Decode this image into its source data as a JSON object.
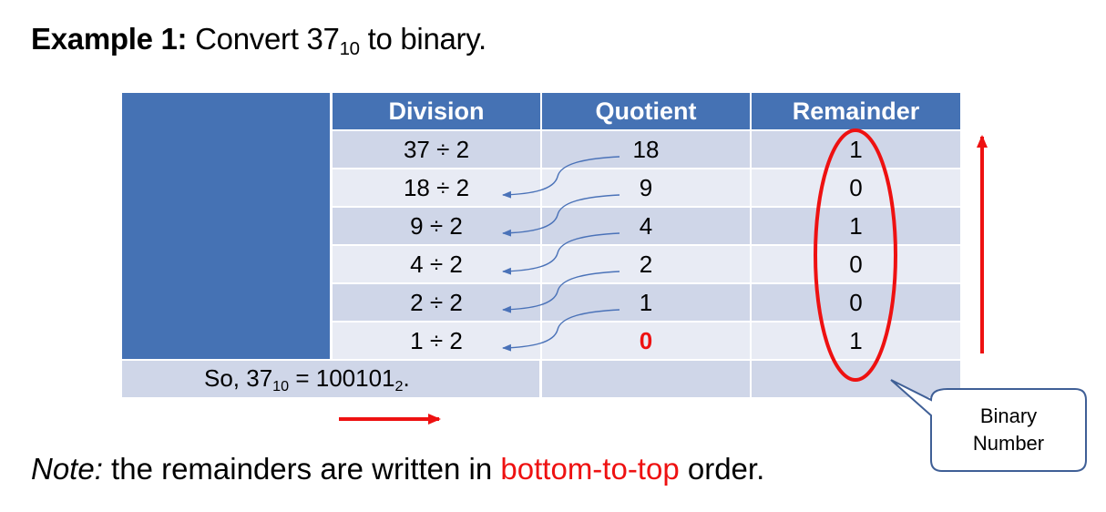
{
  "heading": {
    "bold_label": "Example 1:",
    "text_before": "Convert 37",
    "subscript": "10",
    "text_after": "to binary."
  },
  "table": {
    "headers": [
      "Division",
      "Quotient",
      "Remainder"
    ],
    "rows": [
      {
        "division": "37 ÷ 2",
        "quotient": "18",
        "remainder": "1"
      },
      {
        "division": "18 ÷ 2",
        "quotient": "9",
        "remainder": "0"
      },
      {
        "division": "9 ÷ 2",
        "quotient": "4",
        "remainder": "1"
      },
      {
        "division": "4 ÷ 2",
        "quotient": "2",
        "remainder": "0"
      },
      {
        "division": "2 ÷ 2",
        "quotient": "1",
        "remainder": "0"
      },
      {
        "division": "1 ÷ 2",
        "quotient": "0",
        "remainder": "1"
      }
    ],
    "summary": {
      "prefix": "So, 37",
      "base_from": "10",
      "equals": "= 100101",
      "base_to": "2",
      "suffix": "."
    }
  },
  "callout": {
    "line1": "Binary",
    "line2": "Number"
  },
  "note": {
    "italic_label": "Note:",
    "text_before": "the remainders are written in",
    "highlight": "bottom-to-top",
    "text_after": "order."
  },
  "colors": {
    "header_blue": "#4572b4",
    "row_dark": "#cfd6e8",
    "row_light": "#e8ebf4",
    "accent_red": "#ee1111",
    "connector_blue": "#4a72b8",
    "callout_border": "#3f5f96"
  }
}
